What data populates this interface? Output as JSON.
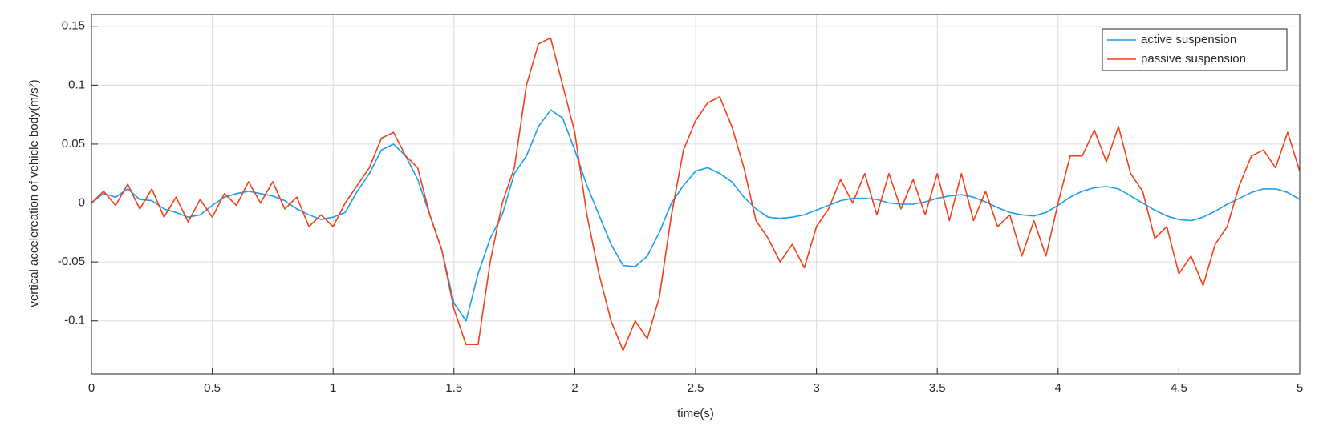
{
  "chart_data": {
    "type": "line",
    "xlabel": "time(s)",
    "ylabel": "vertical accelereation of vehicle body(m/s²)",
    "x": [
      0,
      0.05,
      0.1,
      0.15,
      0.2,
      0.25,
      0.3,
      0.35,
      0.4,
      0.45,
      0.5,
      0.55,
      0.6,
      0.65,
      0.7,
      0.75,
      0.8,
      0.85,
      0.9,
      0.95,
      1,
      1.05,
      1.1,
      1.15,
      1.2,
      1.25,
      1.3,
      1.35,
      1.4,
      1.45,
      1.5,
      1.55,
      1.6,
      1.65,
      1.7,
      1.75,
      1.8,
      1.85,
      1.9,
      1.95,
      2,
      2.05,
      2.1,
      2.15,
      2.2,
      2.25,
      2.3,
      2.35,
      2.4,
      2.45,
      2.5,
      2.55,
      2.6,
      2.65,
      2.7,
      2.75,
      2.8,
      2.85,
      2.9,
      2.95,
      3,
      3.05,
      3.1,
      3.15,
      3.2,
      3.25,
      3.3,
      3.35,
      3.4,
      3.45,
      3.5,
      3.55,
      3.6,
      3.65,
      3.7,
      3.75,
      3.8,
      3.85,
      3.9,
      3.95,
      4,
      4.05,
      4.1,
      4.15,
      4.2,
      4.25,
      4.3,
      4.35,
      4.4,
      4.45,
      4.5,
      4.55,
      4.6,
      4.65,
      4.7,
      4.75,
      4.8,
      4.85,
      4.9,
      4.95,
      5
    ],
    "series": [
      {
        "name": "active suspension",
        "color": "#1a9ee8",
        "values": [
          0,
          0.008,
          0.005,
          0.012,
          0.003,
          0.002,
          -0.005,
          -0.008,
          -0.012,
          -0.01,
          -0.002,
          0.005,
          0.008,
          0.01,
          0.008,
          0.006,
          0.002,
          -0.005,
          -0.01,
          -0.014,
          -0.012,
          -0.008,
          0.01,
          0.025,
          0.045,
          0.05,
          0.04,
          0.02,
          -0.01,
          -0.04,
          -0.085,
          -0.1,
          -0.06,
          -0.03,
          -0.01,
          0.025,
          0.04,
          0.065,
          0.079,
          0.072,
          0.045,
          0.015,
          -0.01,
          -0.035,
          -0.053,
          -0.054,
          -0.045,
          -0.025,
          0,
          0.015,
          0.027,
          0.03,
          0.025,
          0.018,
          0.005,
          -0.005,
          -0.012,
          -0.013,
          -0.012,
          -0.01,
          -0.006,
          -0.002,
          0.002,
          0.004,
          0.004,
          0.003,
          0,
          -0.001,
          -0.001,
          0.001,
          0.004,
          0.006,
          0.007,
          0.005,
          0.001,
          -0.004,
          -0.008,
          -0.01,
          -0.011,
          -0.008,
          -0.002,
          0.005,
          0.01,
          0.013,
          0.014,
          0.012,
          0.006,
          0,
          -0.006,
          -0.011,
          -0.014,
          -0.015,
          -0.012,
          -0.007,
          -0.001,
          0.004,
          0.009,
          0.012,
          0.012,
          0.009,
          0.003
        ]
      },
      {
        "name": "passive suspension",
        "color": "#f0401a",
        "values": [
          0,
          0.01,
          -0.002,
          0.016,
          -0.005,
          0.012,
          -0.012,
          0.005,
          -0.016,
          0.003,
          -0.012,
          0.008,
          -0.002,
          0.018,
          0,
          0.018,
          -0.005,
          0.005,
          -0.02,
          -0.01,
          -0.02,
          0,
          0.015,
          0.03,
          0.055,
          0.06,
          0.04,
          0.03,
          -0.01,
          -0.04,
          -0.09,
          -0.12,
          -0.12,
          -0.05,
          0,
          0.03,
          0.1,
          0.135,
          0.14,
          0.1,
          0.06,
          -0.01,
          -0.06,
          -0.1,
          -0.125,
          -0.1,
          -0.115,
          -0.08,
          -0.01,
          0.045,
          0.07,
          0.085,
          0.09,
          0.065,
          0.03,
          -0.015,
          -0.03,
          -0.05,
          -0.035,
          -0.055,
          -0.02,
          -0.005,
          0.02,
          0,
          0.025,
          -0.01,
          0.025,
          -0.005,
          0.02,
          -0.01,
          0.025,
          -0.015,
          0.025,
          -0.015,
          0.01,
          -0.02,
          -0.01,
          -0.045,
          -0.015,
          -0.045,
          0,
          0.04,
          0.04,
          0.062,
          0.035,
          0.065,
          0.025,
          0.01,
          -0.03,
          -0.02,
          -0.06,
          -0.045,
          -0.07,
          -0.035,
          -0.02,
          0.015,
          0.04,
          0.045,
          0.03,
          0.06,
          0.027
        ]
      }
    ],
    "xlim": [
      0,
      5
    ],
    "xticks": [
      0,
      0.5,
      1,
      1.5,
      2,
      2.5,
      3,
      3.5,
      4,
      4.5,
      5
    ],
    "ylim": [
      -0.145,
      0.16
    ],
    "yticks": [
      -0.1,
      -0.05,
      0,
      0.05,
      0.1,
      0.15
    ],
    "grid": true,
    "legend": "northeast"
  }
}
